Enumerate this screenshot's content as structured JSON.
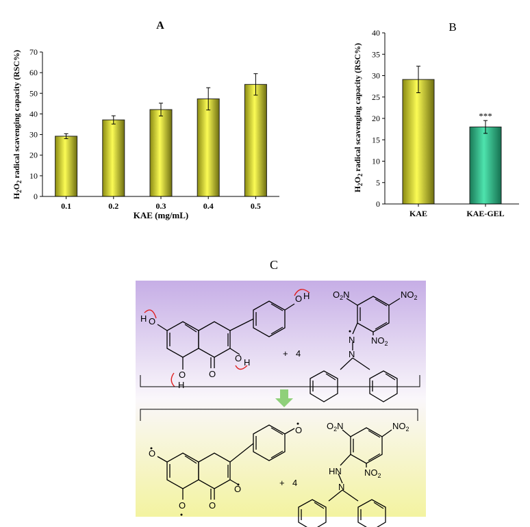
{
  "chart_data": [
    {
      "type": "bar",
      "panel_label": "A",
      "categories": [
        "0.1",
        "0.2",
        "0.3",
        "0.4",
        "0.5"
      ],
      "values": [
        29.2,
        37.1,
        42.1,
        47.3,
        54.3
      ],
      "errors": [
        1.2,
        2.0,
        3.1,
        5.4,
        5.2
      ],
      "xlabel": "KAE (mg/mL)",
      "ylabel_main": "H",
      "ylabel_sub1": "2",
      "ylabel_mid": "O",
      "ylabel_sub2": "2",
      "ylabel_rest": " radical scavenging capacity (RSC%)",
      "ylim": [
        0,
        70
      ],
      "yticks": [
        0,
        10,
        20,
        30,
        40,
        50,
        60,
        70
      ],
      "bar_color": "#f5f542"
    },
    {
      "type": "bar",
      "panel_label": "B",
      "categories": [
        "KAE",
        "KAE-GEL"
      ],
      "values": [
        29.1,
        18.0
      ],
      "errors": [
        3.1,
        1.5
      ],
      "significance": [
        "",
        "***"
      ],
      "bar_colors": [
        "#f5f542",
        "#3fd6a0"
      ],
      "ylabel_main": "H",
      "ylabel_sub1": "2",
      "ylabel_mid": "O",
      "ylabel_sub2": "2",
      "ylabel_rest": " radical scavenging capacity (RSC%)",
      "ylim": [
        0,
        40
      ],
      "yticks": [
        0,
        5,
        10,
        15,
        20,
        25,
        30,
        35,
        40
      ]
    }
  ],
  "scheme": {
    "panel_label": "C",
    "coefficient_top": "4",
    "coefficient_bottom": "4",
    "plus": "+",
    "no2": "NO",
    "no2_sub": "2",
    "o2n": "O",
    "o2n_sub": "2",
    "o2n_n": "N",
    "atom_o": "O",
    "atom_h": "H",
    "atom_n": "N",
    "atom_hn": "HN",
    "top_color": "#c9b3e8",
    "bottom_color": "#f4f4a6",
    "arrow_color": "#8fd07a"
  }
}
